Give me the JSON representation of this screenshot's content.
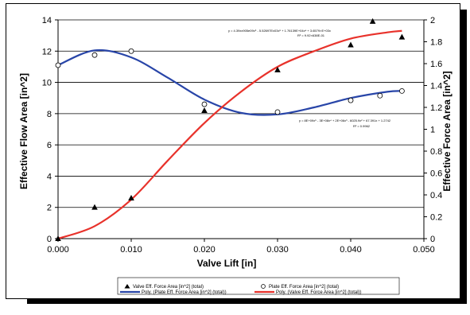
{
  "chart_data": {
    "type": "scatter",
    "xlabel": "Valve Lift [in]",
    "ylabel_left": "Effective Flow Area [in^2]",
    "ylabel_right": "Effective Force Area [in^2]",
    "xlim": [
      0,
      0.05
    ],
    "ylim_left": [
      0,
      14
    ],
    "ylim_right": [
      0,
      2
    ],
    "x_ticks": [
      "0.000",
      "0.010",
      "0.020",
      "0.030",
      "0.040",
      "0.050"
    ],
    "y_left_ticks": [
      "0",
      "2",
      "4",
      "6",
      "8",
      "10",
      "12",
      "14"
    ],
    "y_right_ticks": [
      "0",
      "0.2",
      "0.4",
      "0.6",
      "0.8",
      "1",
      "1.2",
      "1.4",
      "1.6",
      "1.8",
      "2"
    ],
    "grid": "horizontal",
    "series": [
      {
        "name": "Valve Eff. Force Area [in^2] (total)",
        "marker": "triangle",
        "axis": "right",
        "color": "#000000",
        "x": [
          0.0,
          0.005,
          0.01,
          0.02,
          0.03,
          0.04,
          0.043,
          0.047
        ],
        "y": [
          0.0,
          0.286,
          0.371,
          1.171,
          1.543,
          1.771,
          1.986,
          1.843
        ]
      },
      {
        "name": "Plate Eff. Force Area [in^2] (total)",
        "marker": "circle",
        "axis": "left",
        "color": "#000000",
        "x": [
          0.0,
          0.005,
          0.01,
          0.02,
          0.03,
          0.04,
          0.044,
          0.047
        ],
        "y": [
          11.1,
          11.75,
          12.0,
          8.6,
          8.1,
          8.85,
          9.15,
          9.45
        ]
      },
      {
        "name": "Poly. (Plate Eff. Force Area [in^2] (total))",
        "type": "line",
        "axis": "left",
        "color": "#2845a8",
        "x": [
          0.0,
          0.005,
          0.01,
          0.015,
          0.02,
          0.025,
          0.03,
          0.035,
          0.04,
          0.045,
          0.047
        ],
        "y": [
          11.1,
          12.05,
          11.6,
          10.3,
          8.9,
          8.05,
          7.95,
          8.4,
          9.0,
          9.4,
          9.45
        ]
      },
      {
        "name": "Poly. (Valve Eff. Force Area [in^2] (total))",
        "type": "line",
        "axis": "right",
        "color": "#e8322b",
        "x": [
          0.0,
          0.005,
          0.01,
          0.015,
          0.02,
          0.025,
          0.03,
          0.035,
          0.04,
          0.045,
          0.047
        ],
        "y": [
          0.0,
          0.114,
          0.357,
          0.714,
          1.057,
          1.343,
          1.571,
          1.714,
          1.829,
          1.886,
          1.9
        ]
      }
    ],
    "annotations": [
      {
        "text_lines": [
          "y = 4.39xx905e09x⁶ - 5.52697Ex03x⁵ + 1.76139E+04x⁴ + 3.6579×E+03x",
          "R² = 9.92×638E-01"
        ]
      },
      {
        "text_lines": [
          "y = 8E+09x⁵ - 3E+08x⁴ + 2E+06x³ - 6025.9x² + 67.391x + 1.2742",
          "R² = 0.9962"
        ]
      }
    ],
    "legend": {
      "placement": "bottom",
      "items": [
        "Valve Eff. Force Area [in^2] (total)",
        "Plate Eff. Force Area [in^2] (total)",
        "Poly. (Plate Eff. Force Area [in^2] (total))",
        "Poly. (Valve Eff. Force Area [in^2] (total))"
      ]
    }
  }
}
